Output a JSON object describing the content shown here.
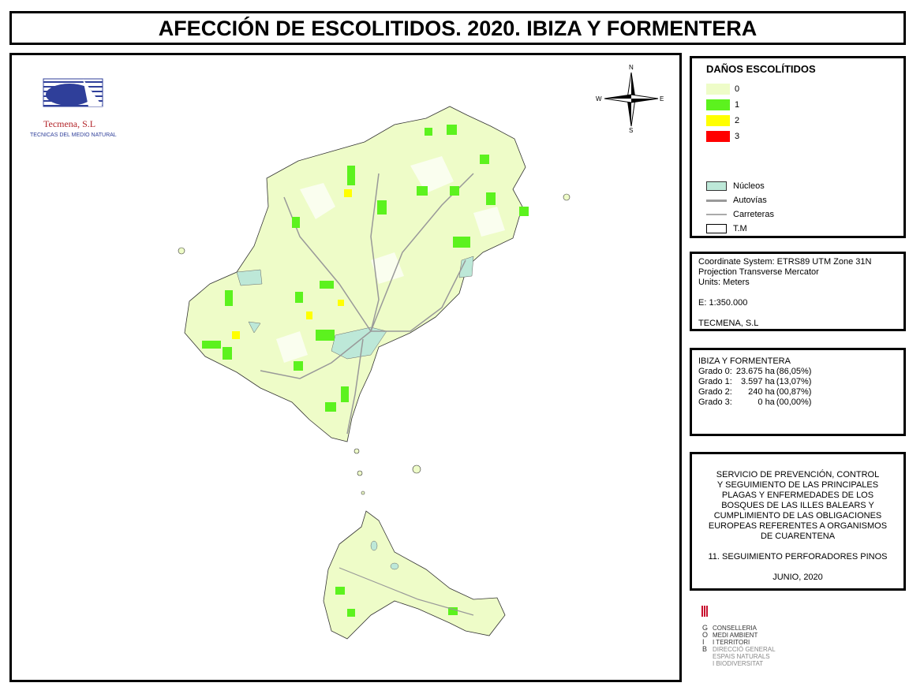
{
  "title": "AFECCIÓN DE ESCOLITIDOS. 2020. IBIZA Y FORMENTERA",
  "logo": {
    "name": "Tecmena, S.L",
    "subtitle": "TECNICAS DEL MEDIO NATURAL"
  },
  "compass": {
    "north": "N",
    "south": "S",
    "east": "E",
    "west": "W"
  },
  "legend": {
    "title": "DAÑOS ESCOLÍTIDOS",
    "classes": [
      {
        "label": "0",
        "color": "#eefcc8"
      },
      {
        "label": "1",
        "color": "#5cf21e"
      },
      {
        "label": "2",
        "color": "#ffff00"
      },
      {
        "label": "3",
        "color": "#ff0000"
      }
    ],
    "layers": [
      "Núcleos",
      "Autovías",
      "Carreteras",
      "T.M"
    ]
  },
  "projection": {
    "lines": [
      "Coordinate System: ETRS89 UTM Zone 31N",
      "Projection Transverse Mercator",
      "Units: Meters"
    ],
    "scale": "E: 1:350.000",
    "author": "TECMENA, S.L"
  },
  "stats": {
    "title": "IBIZA Y FORMENTERA",
    "rows": [
      [
        "Grado 0:",
        "23.675 ha",
        "(86,05%)"
      ],
      [
        "Grado 1:",
        "3.597 ha",
        "(13,07%)"
      ],
      [
        "Grado 2:",
        "240 ha",
        "(00,87%)"
      ],
      [
        "Grado 3:",
        "0 ha",
        "(00,00%)"
      ]
    ]
  },
  "project": {
    "description": [
      "SERVICIO DE PREVENCIÓN, CONTROL",
      "Y SEGUIMIENTO DE LAS PRINCIPALES",
      "PLAGAS Y ENFERMEDADES DE LOS",
      "BOSQUES DE LAS ILLES BALEARS Y",
      "CUMPLIMIENTO DE LAS OBLIGACIONES",
      "EUROPEAS REFERENTES A ORGANISMOS",
      "DE CUARENTENA"
    ],
    "task": "11. SEGUIMIENTO PERFORADORES PINOS",
    "date": "JUNIO, 2020"
  },
  "govern": {
    "letters": [
      "G",
      "O",
      "I",
      "B"
    ],
    "lines": [
      "CONSELLERIA",
      "MEDI AMBIENT",
      "I TERRITORI",
      "DIRECCIÓ GENERAL",
      "ESPAIS NATURALS",
      "I BIODIVERSITAT"
    ]
  }
}
